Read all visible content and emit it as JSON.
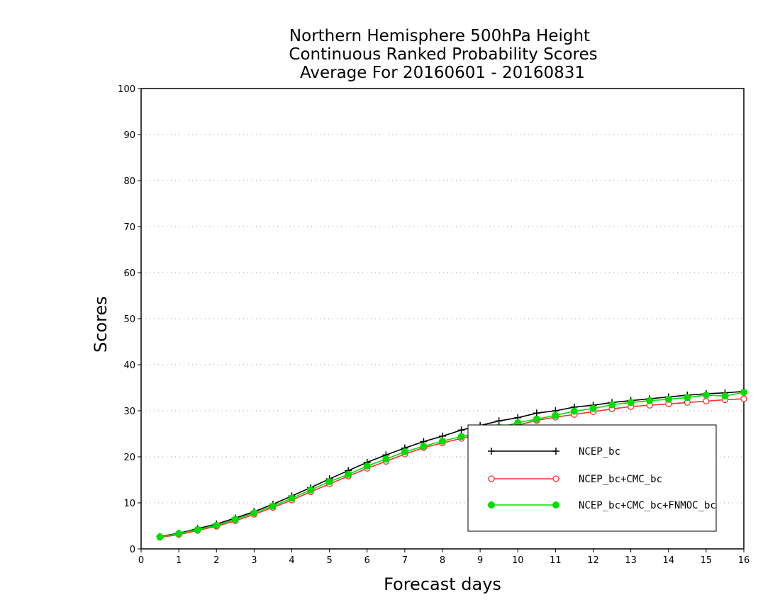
{
  "chart_data": {
    "type": "line",
    "title": [
      "Northern Hemisphere 500hPa Height",
      "Continuous Ranked Probability Scores",
      "Average For 20160601 - 20160831"
    ],
    "xlabel": "Forecast days",
    "ylabel": "Scores",
    "xlim": [
      0,
      16
    ],
    "ylim": [
      0,
      100
    ],
    "xticks": [
      0,
      1,
      2,
      3,
      4,
      5,
      6,
      7,
      8,
      9,
      10,
      11,
      12,
      13,
      14,
      15,
      16
    ],
    "yticks": [
      0,
      10,
      20,
      30,
      40,
      50,
      60,
      70,
      80,
      90,
      100
    ],
    "grid": "horizontal dotted",
    "legend_position": "bottom-right",
    "x": [
      0.5,
      1,
      1.5,
      2,
      2.5,
      3,
      3.5,
      4,
      4.5,
      5,
      5.5,
      6,
      6.5,
      7,
      7.5,
      8,
      8.5,
      9,
      9.5,
      10,
      10.5,
      11,
      11.5,
      12,
      12.5,
      13,
      13.5,
      14,
      14.5,
      15,
      15.5,
      16
    ],
    "series": [
      {
        "name": "NCEP_bc",
        "color": "#000000",
        "marker": "plus",
        "values": [
          2.7,
          3.4,
          4.4,
          5.4,
          6.7,
          8.1,
          9.7,
          11.5,
          13.3,
          15.2,
          17.0,
          18.8,
          20.4,
          21.9,
          23.3,
          24.5,
          25.8,
          26.8,
          27.8,
          28.5,
          29.5,
          30.0,
          30.8,
          31.2,
          31.8,
          32.2,
          32.6,
          33.0,
          33.4,
          33.7,
          33.9,
          34.2
        ]
      },
      {
        "name": "NCEP_bc+CMC_bc",
        "color": "#ff3030",
        "marker": "open-circle",
        "values": [
          2.5,
          3.1,
          4.0,
          4.9,
          6.1,
          7.5,
          9.0,
          10.6,
          12.4,
          14.1,
          15.8,
          17.5,
          19.0,
          20.6,
          22.0,
          23.0,
          24.0,
          25.0,
          25.9,
          26.9,
          27.9,
          28.6,
          29.2,
          29.8,
          30.4,
          30.9,
          31.2,
          31.5,
          31.8,
          32.1,
          32.4,
          32.6
        ]
      },
      {
        "name": "NCEP_bc+CMC_bc+FNMOC_bc",
        "color": "#00dd00",
        "marker": "filled-circle",
        "values": [
          2.6,
          3.3,
          4.2,
          5.1,
          6.4,
          7.8,
          9.3,
          11.0,
          12.8,
          14.6,
          16.2,
          18.0,
          19.5,
          21.1,
          22.3,
          23.4,
          24.4,
          25.3,
          26.4,
          27.4,
          28.2,
          29.0,
          29.9,
          30.5,
          31.3,
          31.8,
          32.2,
          32.5,
          32.9,
          33.4,
          33.2,
          34.0
        ]
      }
    ]
  }
}
